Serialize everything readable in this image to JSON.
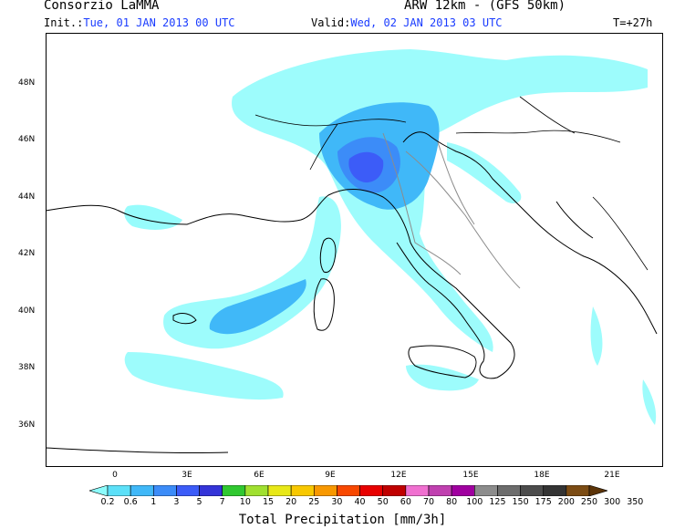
{
  "header": {
    "producer": "Consorzio LaMMA",
    "model": "ARW 12km - (GFS 50km)",
    "init_label": "Init.:",
    "init_value": "Tue, 01 JAN 2013  00 UTC",
    "valid_label": "Valid:",
    "valid_value": "Wed, 02 JAN 2013  03 UTC",
    "lead_time": "T=+27h"
  },
  "map": {
    "lat_labels": [
      "48N",
      "46N",
      "44N",
      "42N",
      "40N",
      "38N",
      "36N"
    ],
    "lon_labels": [
      "0",
      "3E",
      "6E",
      "9E",
      "12E",
      "15E",
      "18E",
      "21E"
    ],
    "colors": {
      "land_line": "#000000",
      "border_line": "#8c8c8c"
    }
  },
  "colorbar": {
    "title": "Total Precipitation [mm/3h]",
    "levels": [
      "0.2",
      "0.6",
      "1",
      "3",
      "5",
      "7",
      "10",
      "15",
      "20",
      "25",
      "30",
      "40",
      "50",
      "60",
      "70",
      "80",
      "100",
      "125",
      "150",
      "175",
      "200",
      "250",
      "300",
      "350"
    ],
    "colors": [
      "#8cfcfc",
      "#5ce0f8",
      "#40b8f8",
      "#3c8cf8",
      "#3c5cf8",
      "#3434d8",
      "#30c830",
      "#a0e030",
      "#e8e818",
      "#f8c800",
      "#f89800",
      "#f84800",
      "#e80000",
      "#c00000",
      "#f070d0",
      "#c040b0",
      "#a000a0",
      "#8c8c8c",
      "#6c6c6c",
      "#4c4c4c",
      "#343434",
      "#7c4c14",
      "#5c3408"
    ]
  }
}
